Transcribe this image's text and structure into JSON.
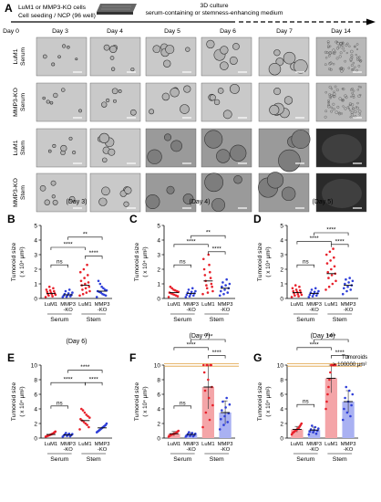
{
  "panel_a": {
    "letter": "A",
    "cells_line": "LuM1 or MMP3-KO cells",
    "seeding_line": "Cell seeding / NCP (96 well)",
    "culture_title": "3D culture",
    "culture_sub": "serum-containing or stemness-enhancing medium",
    "days": [
      "Day 0",
      "Day 3",
      "Day 4",
      "Day 5",
      "Day 6",
      "Day 7",
      "Day 14"
    ],
    "rows": [
      {
        "line1": "LuM1",
        "line2": "Serum"
      },
      {
        "line1": "MMP3-KO",
        "line2": "Serum"
      },
      {
        "line1": "LuM1",
        "line2": "Stem"
      },
      {
        "line1": "MMP3-KO",
        "line2": "Stem"
      }
    ]
  },
  "axis": {
    "ylabel_main": "Tumoroid size",
    "ylabel_unit": "( x 10⁴ μm²)",
    "group_labels": [
      "Serum",
      "Stem"
    ],
    "tick_labels": [
      {
        "line1": "LuM1",
        "line2": ""
      },
      {
        "line1": "MMP3",
        "line2": "-KO"
      },
      {
        "line1": "LuM1",
        "line2": ""
      },
      {
        "line1": "MMP3",
        "line2": "-KO"
      }
    ]
  },
  "legend_note": {
    "line1": "Tumoroids",
    "line2": "> 100000 μm²"
  },
  "chart_data": [
    {
      "letter": "B",
      "type": "scatter",
      "title": "(Day 3)",
      "ylim": [
        0,
        5
      ],
      "yticks": [
        0,
        1,
        2,
        3,
        4,
        5
      ],
      "bars": false,
      "groups": [
        {
          "mean": 0.35,
          "values": [
            0.1,
            0.15,
            0.2,
            0.25,
            0.3,
            0.3,
            0.35,
            0.4,
            0.45,
            0.5,
            0.55,
            0.6,
            0.7,
            0.8
          ]
        },
        {
          "mean": 0.25,
          "values": [
            0.1,
            0.12,
            0.15,
            0.2,
            0.22,
            0.25,
            0.3,
            0.35,
            0.4,
            0.5,
            0.6
          ]
        },
        {
          "mean": 0.9,
          "values": [
            0.2,
            0.3,
            0.4,
            0.5,
            0.6,
            0.7,
            0.8,
            0.9,
            1.0,
            1.1,
            1.2,
            1.4,
            1.6,
            1.8,
            2.0,
            2.3
          ]
        },
        {
          "mean": 0.5,
          "values": [
            0.1,
            0.2,
            0.25,
            0.3,
            0.4,
            0.45,
            0.5,
            0.55,
            0.6,
            0.7,
            0.8,
            1.0,
            1.2
          ]
        }
      ],
      "significance": [
        {
          "from": 0,
          "to": 1,
          "label": "ns",
          "y": 2.3
        },
        {
          "from": 0,
          "to": 2,
          "label": "****",
          "y": 3.5
        },
        {
          "from": 1,
          "to": 3,
          "label": "**",
          "y": 4.2
        },
        {
          "from": 2,
          "to": 3,
          "label": "****",
          "y": 2.9
        }
      ]
    },
    {
      "letter": "C",
      "type": "scatter",
      "title": "(Day 4)",
      "ylim": [
        0,
        5
      ],
      "yticks": [
        0,
        1,
        2,
        3,
        4,
        5
      ],
      "bars": false,
      "groups": [
        {
          "mean": 0.4,
          "values": [
            0.1,
            0.15,
            0.2,
            0.25,
            0.3,
            0.35,
            0.4,
            0.45,
            0.5,
            0.55,
            0.6,
            0.7,
            0.8
          ]
        },
        {
          "mean": 0.35,
          "values": [
            0.1,
            0.15,
            0.2,
            0.25,
            0.3,
            0.35,
            0.4,
            0.45,
            0.5,
            0.6,
            0.7
          ]
        },
        {
          "mean": 1.2,
          "values": [
            0.3,
            0.4,
            0.5,
            0.7,
            0.8,
            0.9,
            1.0,
            1.2,
            1.4,
            1.6,
            1.8,
            2.0,
            2.3,
            2.7,
            3.0
          ]
        },
        {
          "mean": 0.7,
          "values": [
            0.2,
            0.3,
            0.4,
            0.5,
            0.6,
            0.7,
            0.8,
            0.9,
            1.0,
            1.1,
            1.3
          ]
        }
      ],
      "significance": [
        {
          "from": 0,
          "to": 1,
          "label": "ns",
          "y": 2.3
        },
        {
          "from": 0,
          "to": 2,
          "label": "****",
          "y": 3.7
        },
        {
          "from": 1,
          "to": 3,
          "label": "**",
          "y": 4.3
        },
        {
          "from": 2,
          "to": 3,
          "label": "****",
          "y": 3.2
        }
      ]
    },
    {
      "letter": "D",
      "type": "scatter",
      "title": "(Day 5)",
      "ylim": [
        0,
        5
      ],
      "yticks": [
        0,
        1,
        2,
        3,
        4,
        5
      ],
      "bars": false,
      "groups": [
        {
          "mean": 0.4,
          "values": [
            0.1,
            0.15,
            0.2,
            0.25,
            0.3,
            0.35,
            0.4,
            0.45,
            0.5,
            0.55,
            0.6,
            0.7,
            0.8,
            0.9
          ]
        },
        {
          "mean": 0.35,
          "values": [
            0.1,
            0.15,
            0.2,
            0.25,
            0.3,
            0.35,
            0.4,
            0.45,
            0.5,
            0.6,
            0.7
          ]
        },
        {
          "mean": 1.7,
          "values": [
            0.6,
            0.8,
            1.0,
            1.2,
            1.4,
            1.6,
            1.7,
            1.8,
            2.0,
            2.2,
            2.4,
            2.6,
            2.8,
            3.0,
            3.2,
            3.4
          ]
        },
        {
          "mean": 0.9,
          "values": [
            0.3,
            0.5,
            0.6,
            0.7,
            0.8,
            0.9,
            1.0,
            1.1,
            1.2,
            1.3,
            1.4
          ]
        }
      ],
      "significance": [
        {
          "from": 0,
          "to": 1,
          "label": "ns",
          "y": 2.3
        },
        {
          "from": 0,
          "to": 2,
          "label": "****",
          "y": 3.9
        },
        {
          "from": 1,
          "to": 3,
          "label": "****",
          "y": 4.5
        },
        {
          "from": 2,
          "to": 3,
          "label": "****",
          "y": 3.7
        }
      ]
    },
    {
      "letter": "E",
      "type": "scatter",
      "title": "(Day 6)",
      "ylim": [
        0,
        10
      ],
      "yticks": [
        0,
        2,
        4,
        6,
        8,
        10
      ],
      "bars": false,
      "groups": [
        {
          "mean": 0.5,
          "values": [
            0.2,
            0.25,
            0.3,
            0.35,
            0.4,
            0.45,
            0.5,
            0.55,
            0.6,
            0.7,
            0.8,
            0.9
          ]
        },
        {
          "mean": 0.45,
          "values": [
            0.2,
            0.25,
            0.3,
            0.35,
            0.4,
            0.45,
            0.5,
            0.55,
            0.6,
            0.7
          ]
        },
        {
          "mean": 2.4,
          "values": [
            1.2,
            1.5,
            1.8,
            2.0,
            2.2,
            2.4,
            2.6,
            2.8,
            3.0,
            3.2,
            3.5,
            3.8,
            4.0
          ]
        },
        {
          "mean": 1.4,
          "values": [
            0.8,
            0.9,
            1.0,
            1.1,
            1.2,
            1.3,
            1.4,
            1.5,
            1.6,
            1.7,
            1.8,
            2.0
          ]
        }
      ],
      "significance": [
        {
          "from": 0,
          "to": 1,
          "label": "ns",
          "y": 4.4
        },
        {
          "from": 0,
          "to": 2,
          "label": "****",
          "y": 7.6
        },
        {
          "from": 1,
          "to": 3,
          "label": "****",
          "y": 9.3
        },
        {
          "from": 2,
          "to": 3,
          "label": "****",
          "y": 7.6
        }
      ]
    },
    {
      "letter": "F",
      "type": "bar",
      "title": "(Day 7)",
      "ylim": [
        0,
        10
      ],
      "yticks": [
        0,
        2,
        4,
        6,
        8,
        10
      ],
      "bars": true,
      "groups": [
        {
          "mean": 0.6,
          "sd": 0.3,
          "values": [
            0.2,
            0.3,
            0.4,
            0.45,
            0.5,
            0.55,
            0.6,
            0.65,
            0.7,
            0.8,
            0.9,
            1.0
          ]
        },
        {
          "mean": 0.5,
          "sd": 0.25,
          "values": [
            0.2,
            0.25,
            0.3,
            0.35,
            0.4,
            0.5,
            0.55,
            0.6,
            0.7,
            0.8
          ]
        },
        {
          "mean": 7.0,
          "sd": 3.0,
          "values": [
            1.5,
            2.5,
            3.5,
            4.5,
            5.5,
            6.5,
            7.0,
            8.0,
            9.0,
            10,
            10,
            10,
            10,
            10
          ]
        },
        {
          "mean": 3.5,
          "sd": 1.6,
          "values": [
            1.2,
            1.8,
            2.2,
            2.6,
            3.0,
            3.4,
            3.8,
            4.2,
            4.6,
            5.0,
            5.5
          ]
        }
      ],
      "significance": [
        {
          "from": 0,
          "to": 1,
          "label": "ns",
          "y": 4.4
        },
        {
          "from": 0,
          "to": 2,
          "label": "****",
          "y": 12.4
        },
        {
          "from": 1,
          "to": 3,
          "label": "****",
          "y": 13.5
        },
        {
          "from": 2,
          "to": 3,
          "label": "****",
          "y": 11.3
        }
      ]
    },
    {
      "letter": "G",
      "type": "bar",
      "title": "(Day 14)",
      "ylim": [
        0,
        10
      ],
      "yticks": [
        0,
        2,
        4,
        6,
        8,
        10
      ],
      "bars": true,
      "groups": [
        {
          "mean": 1.2,
          "sd": 0.4,
          "values": [
            0.5,
            0.7,
            0.8,
            0.9,
            1.0,
            1.1,
            1.2,
            1.3,
            1.4,
            1.6,
            1.8,
            2.0
          ]
        },
        {
          "mean": 1.1,
          "sd": 0.4,
          "values": [
            0.5,
            0.6,
            0.8,
            0.9,
            1.0,
            1.1,
            1.2,
            1.3,
            1.5,
            1.7
          ]
        },
        {
          "mean": 8.2,
          "sd": 2.0,
          "values": [
            4.0,
            5.0,
            6.0,
            7.0,
            8.0,
            9.0,
            10,
            10,
            10,
            10,
            10,
            10
          ]
        },
        {
          "mean": 5.0,
          "sd": 1.5,
          "values": [
            2.5,
            3.0,
            3.5,
            4.0,
            4.5,
            5.0,
            5.5,
            6.0,
            6.5,
            7.0
          ]
        }
      ],
      "significance": [
        {
          "from": 0,
          "to": 1,
          "label": "ns",
          "y": 4.6
        },
        {
          "from": 0,
          "to": 2,
          "label": "****",
          "y": 12.4
        },
        {
          "from": 1,
          "to": 3,
          "label": "****",
          "y": 13.5
        },
        {
          "from": 2,
          "to": 3,
          "label": "****",
          "y": 11.3
        }
      ]
    }
  ],
  "colors": {
    "lum1": "#e8202a",
    "mmp3": "#2f3fd9",
    "lum1_bar": "#f4a5a8",
    "mmp3_bar": "#a9b1f2",
    "threshold": "#e0a040"
  }
}
